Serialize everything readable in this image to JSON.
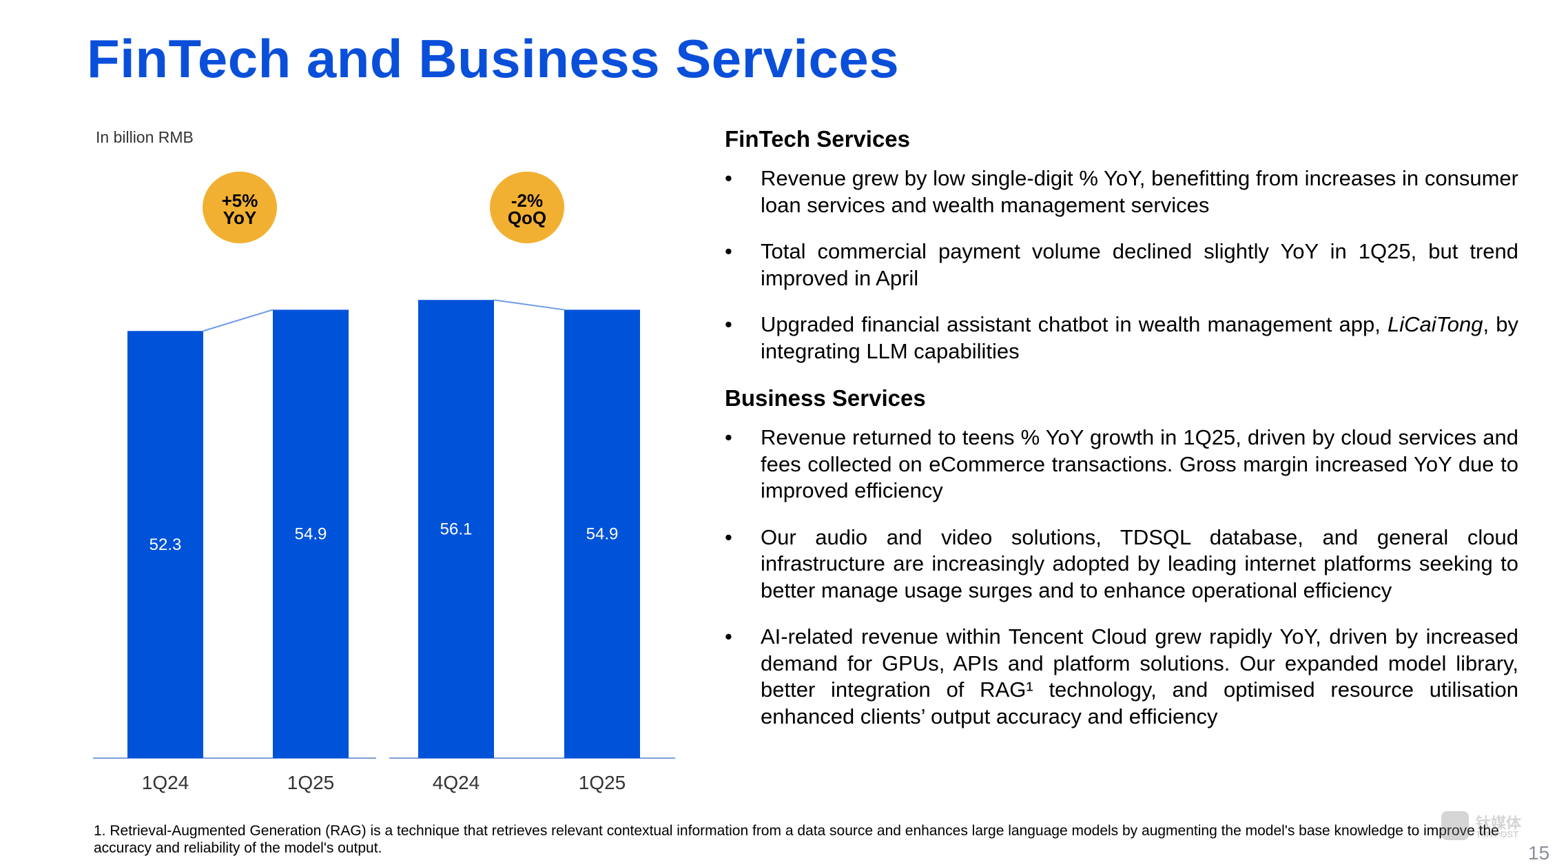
{
  "title": "FinTech and Business Services",
  "unit_label": "In billion RMB",
  "chart_data": {
    "type": "bar",
    "ylabel": "In billion RMB",
    "ylim": [
      0,
      60
    ],
    "groups": [
      {
        "categories": [
          "1Q24",
          "1Q25"
        ],
        "values": [
          52.3,
          54.9
        ],
        "labels": [
          "52.3",
          "54.9"
        ],
        "badge": [
          "+5%",
          "YoY"
        ]
      },
      {
        "categories": [
          "4Q24",
          "1Q25"
        ],
        "values": [
          56.1,
          54.9
        ],
        "labels": [
          "56.1",
          "54.9"
        ],
        "badge": [
          "-2%",
          "QoQ"
        ]
      }
    ],
    "bar_color": "#0052d9",
    "badge_color": "#f2b032"
  },
  "fintech": {
    "heading": "FinTech Services",
    "bullets": [
      "Revenue grew by low single-digit % YoY, benefitting from increases in consumer loan services and wealth management services",
      "Total commercial payment volume declined slightly YoY in 1Q25, but trend improved in April",
      "Upgraded financial assistant chatbot in wealth management app, LiCaiTong, by integrating LLM capabilities"
    ]
  },
  "business": {
    "heading": "Business Services",
    "bullets": [
      "Revenue returned to teens % YoY growth in 1Q25, driven by cloud services and fees collected on eCommerce transactions. Gross margin increased YoY due to improved efficiency",
      "Our audio and video solutions, TDSQL database, and general cloud infrastructure are increasingly adopted by leading internet platforms seeking to better manage usage surges and to enhance operational efficiency",
      "AI-related revenue within Tencent Cloud grew rapidly YoY, driven by increased demand for GPUs, APIs and platform solutions. Our expanded model library, better integration of RAG¹ technology, and optimised resource utilisation enhanced clients’ output accuracy and efficiency"
    ]
  },
  "footnote": "1. Retrieval-Augmented Generation (RAG) is a technique that retrieves relevant contextual information from a data source and enhances large language models by augmenting the model's base knowledge to improve the accuracy and reliability of the model's output.",
  "watermark": {
    "cn": "钛媒体",
    "en": "TMTPOST"
  },
  "page_number": "15"
}
